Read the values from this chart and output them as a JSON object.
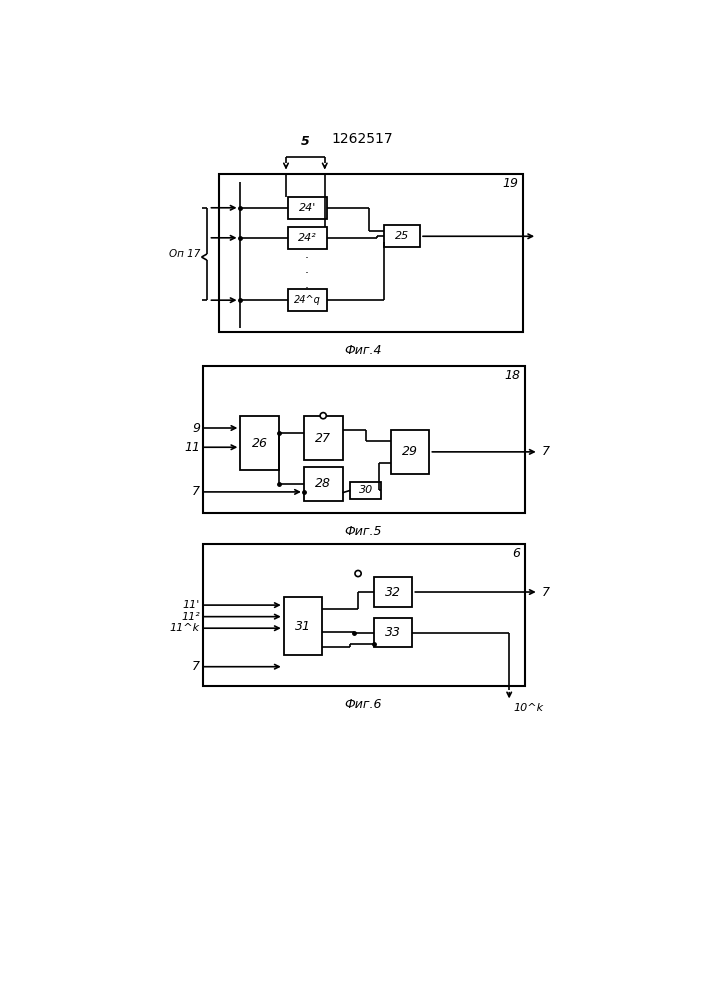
{
  "title": "1262517",
  "fig4_label": "Фиг.4",
  "fig5_label": "Фиг.5",
  "fig6_label": "Фиг.6",
  "bg_color": "#ffffff",
  "box_color": "#000000",
  "line_color": "#000000",
  "text_color": "#000000"
}
